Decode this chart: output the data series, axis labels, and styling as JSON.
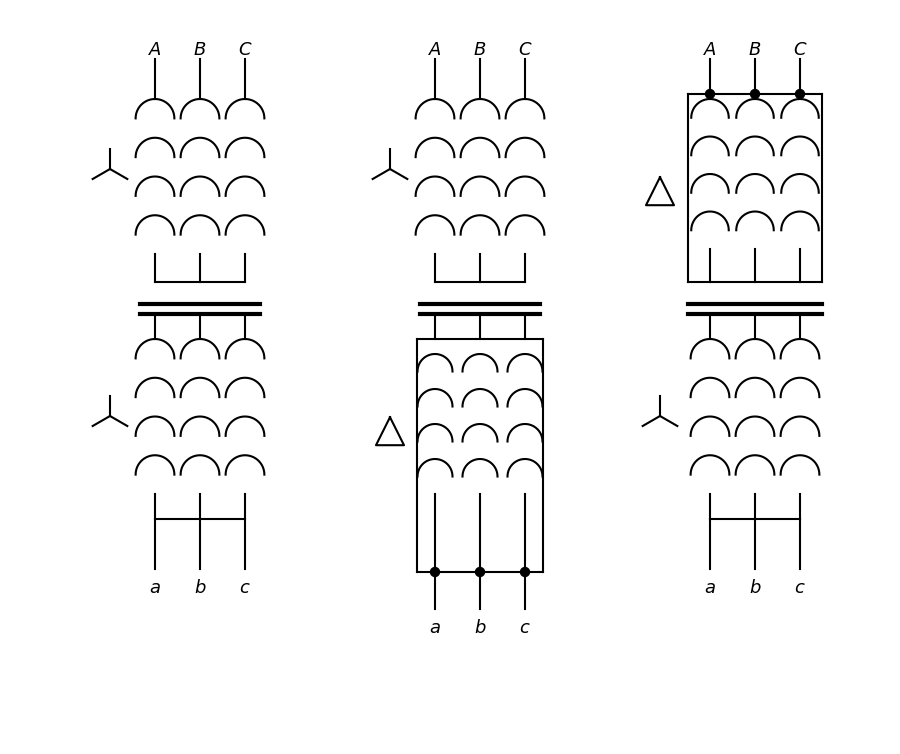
{
  "bg_color": "#ffffff",
  "line_color": "#000000",
  "fig_width": 9.0,
  "fig_height": 7.54
}
